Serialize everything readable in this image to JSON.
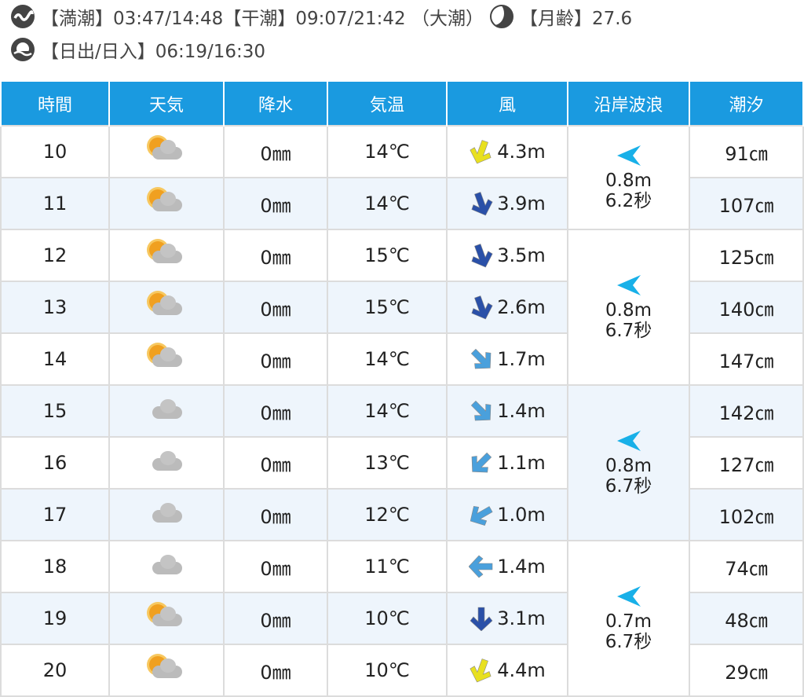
{
  "info": {
    "tide_line": "【満潮】03:47/14:48【干潮】09:07/21:42 （大潮）",
    "moon_label": "【月齢】27.6",
    "sun_line": "【日出/日入】06:19/16:30"
  },
  "columns": [
    "時間",
    "天気",
    "降水",
    "気温",
    "風",
    "沿岸波浪",
    "潮汐"
  ],
  "colors": {
    "header": "#1a9ae0",
    "wind_yellow": "#e8e020",
    "wind_dark": "#2a50a8",
    "wind_light": "#4aa0dc",
    "wave_arrow": "#18b0e8"
  },
  "rows": [
    {
      "hour": "10",
      "weather": "sun-cloud",
      "rain": "0㎜",
      "temp": "14℃",
      "wind": "4.3m",
      "wind_dir": 200,
      "wind_color": "yellow",
      "tide": "91㎝"
    },
    {
      "hour": "11",
      "weather": "sun-cloud",
      "rain": "0㎜",
      "temp": "14℃",
      "wind": "3.9m",
      "wind_dir": 160,
      "wind_color": "dark",
      "tide": "107㎝"
    },
    {
      "hour": "12",
      "weather": "sun-cloud",
      "rain": "0㎜",
      "temp": "15℃",
      "wind": "3.5m",
      "wind_dir": 160,
      "wind_color": "dark",
      "tide": "125㎝"
    },
    {
      "hour": "13",
      "weather": "sun-cloud",
      "rain": "0㎜",
      "temp": "15℃",
      "wind": "2.6m",
      "wind_dir": 160,
      "wind_color": "dark",
      "tide": "140㎝"
    },
    {
      "hour": "14",
      "weather": "sun-cloud",
      "rain": "0㎜",
      "temp": "14℃",
      "wind": "1.7m",
      "wind_dir": 135,
      "wind_color": "light",
      "tide": "147㎝"
    },
    {
      "hour": "15",
      "weather": "cloud",
      "rain": "0㎜",
      "temp": "14℃",
      "wind": "1.4m",
      "wind_dir": 135,
      "wind_color": "light",
      "tide": "142㎝"
    },
    {
      "hour": "16",
      "weather": "cloud",
      "rain": "0㎜",
      "temp": "13℃",
      "wind": "1.1m",
      "wind_dir": 225,
      "wind_color": "light",
      "tide": "127㎝"
    },
    {
      "hour": "17",
      "weather": "cloud",
      "rain": "0㎜",
      "temp": "12℃",
      "wind": "1.0m",
      "wind_dir": 240,
      "wind_color": "light",
      "tide": "102㎝"
    },
    {
      "hour": "18",
      "weather": "cloud",
      "rain": "0㎜",
      "temp": "11℃",
      "wind": "1.4m",
      "wind_dir": 270,
      "wind_color": "light",
      "tide": "74㎝"
    },
    {
      "hour": "19",
      "weather": "sun-cloud",
      "rain": "0㎜",
      "temp": "10℃",
      "wind": "3.1m",
      "wind_dir": 180,
      "wind_color": "dark",
      "tide": "48㎝"
    },
    {
      "hour": "20",
      "weather": "sun-cloud",
      "rain": "0㎜",
      "temp": "10℃",
      "wind": "4.4m",
      "wind_dir": 200,
      "wind_color": "yellow",
      "tide": "29㎝"
    }
  ],
  "waves": [
    {
      "span": 2,
      "height": "0.8m",
      "period": "6.2秒"
    },
    {
      "span": 3,
      "height": "0.8m",
      "period": "6.7秒"
    },
    {
      "span": 3,
      "height": "0.8m",
      "period": "6.7秒"
    },
    {
      "span": 3,
      "height": "0.7m",
      "period": "6.7秒"
    }
  ]
}
